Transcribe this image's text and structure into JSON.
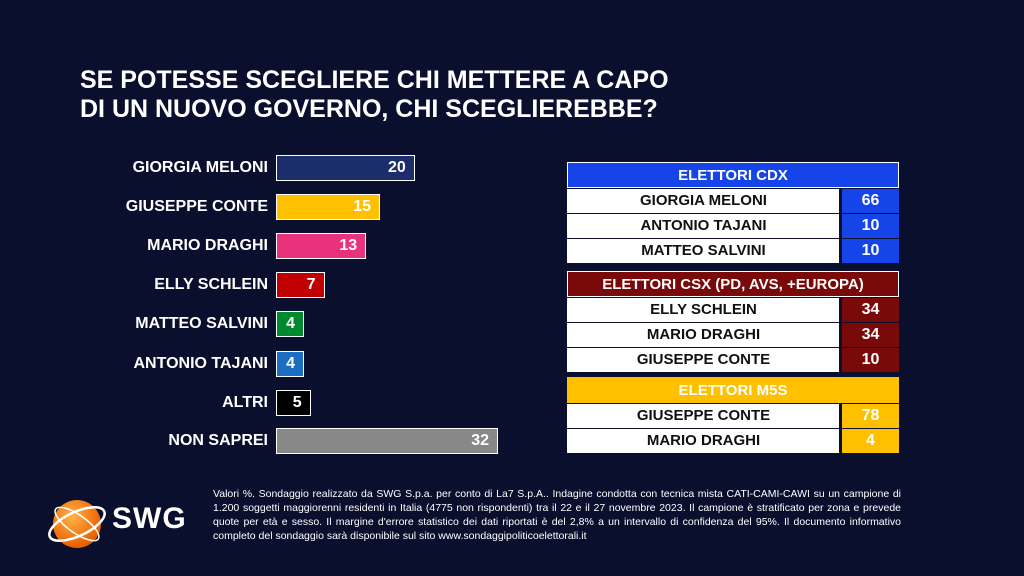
{
  "title": {
    "line1": "SE POTESSE SCEGLIERE CHI METTERE A CAPO",
    "line2": "DI UN NUOVO GOVERNO, CHI SCEGLIEREBBE?"
  },
  "chart_data": {
    "type": "bar",
    "orientation": "horizontal",
    "categories": [
      "GIORGIA MELONI",
      "GIUSEPPE CONTE",
      "MARIO DRAGHI",
      "ELLY SCHLEIN",
      "MATTEO SALVINI",
      "ANTONIO TAJANI",
      "ALTRI",
      "NON SAPREI"
    ],
    "values": [
      20,
      15,
      13,
      7,
      4,
      4,
      5,
      32
    ],
    "colors": [
      "#1b2d6b",
      "#ffc000",
      "#e8327c",
      "#c00000",
      "#008a2e",
      "#1a6fc4",
      "#000000",
      "#888888"
    ],
    "xlim": [
      0,
      32
    ],
    "grid": false
  },
  "panels": [
    {
      "id": "cdx",
      "header": "ELETTORI CDX",
      "color": "#1545e8",
      "rows": [
        {
          "name": "GIORGIA MELONI",
          "value": "66"
        },
        {
          "name": "ANTONIO TAJANI",
          "value": "10"
        },
        {
          "name": "MATTEO SALVINI",
          "value": "10"
        }
      ]
    },
    {
      "id": "csx",
      "header": "ELETTORI CSX (PD, AVS, +EUROPA)",
      "color": "#7a0a0a",
      "rows": [
        {
          "name": "ELLY SCHLEIN",
          "value": "34"
        },
        {
          "name": "MARIO DRAGHI",
          "value": "34"
        },
        {
          "name": "GIUSEPPE CONTE",
          "value": "10"
        }
      ]
    },
    {
      "id": "m5s",
      "header": "ELETTORI M5S",
      "color": "#ffc000",
      "rows": [
        {
          "name": "GIUSEPPE CONTE",
          "value": "78"
        },
        {
          "name": "MARIO DRAGHI",
          "value": "4"
        }
      ]
    }
  ],
  "logo": {
    "text": "SWG"
  },
  "footnote": "Valori %. Sondaggio realizzato da SWG S.p.a. per conto di La7 S.p.A.. Indagine condotta con tecnica mista CATI-CAMI-CAWI su un campione di 1.200 soggetti maggiorenni residenti in Italia (4775 non rispondenti) tra il 22 e il 27 novembre 2023. Il campione è stratificato per zona e prevede quote per età e sesso. Il margine d'errore statistico dei dati riportati è del 2,8% a un intervallo di confidenza del 95%. Il documento informativo completo del sondaggio sarà disponibile sul sito www.sondaggipoliticoelettorali.it"
}
